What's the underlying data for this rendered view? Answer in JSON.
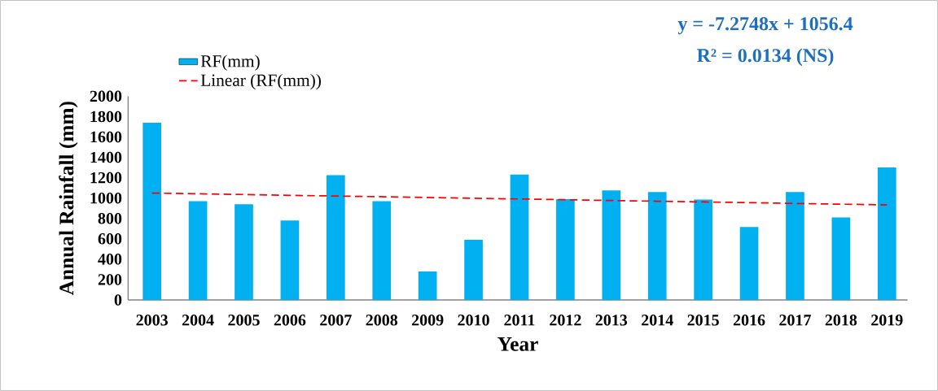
{
  "chart_data": {
    "type": "bar",
    "xlabel": "Year",
    "ylabel": "Annual Rainfall (mm)",
    "categories": [
      "2003",
      "2004",
      "2005",
      "2006",
      "2007",
      "2008",
      "2009",
      "2010",
      "2011",
      "2012",
      "2013",
      "2014",
      "2015",
      "2016",
      "2017",
      "2018",
      "2019"
    ],
    "series": [
      {
        "name": "RF(mm)",
        "color": "#00b0f0",
        "values": [
          1740,
          970,
          940,
          780,
          1225,
          970,
          280,
          590,
          1230,
          990,
          1075,
          1060,
          985,
          715,
          1060,
          810,
          1300
        ]
      },
      {
        "name": "Linear (RF(mm))",
        "type": "line",
        "color": "#ff0000",
        "line_style": "dashed",
        "values": [
          1049,
          1042,
          1035,
          1027,
          1020,
          1013,
          1006,
          998,
          991,
          984,
          976,
          969,
          962,
          955,
          947,
          940,
          933
        ]
      }
    ],
    "ylim": [
      0,
      2000
    ],
    "yticks": [
      0,
      200,
      400,
      600,
      800,
      1000,
      1200,
      1400,
      1600,
      1800,
      2000
    ],
    "legend": "top left",
    "annotations": [
      "y = -7.2748x + 1056.4",
      "R² = 0.0134  (NS)"
    ]
  }
}
